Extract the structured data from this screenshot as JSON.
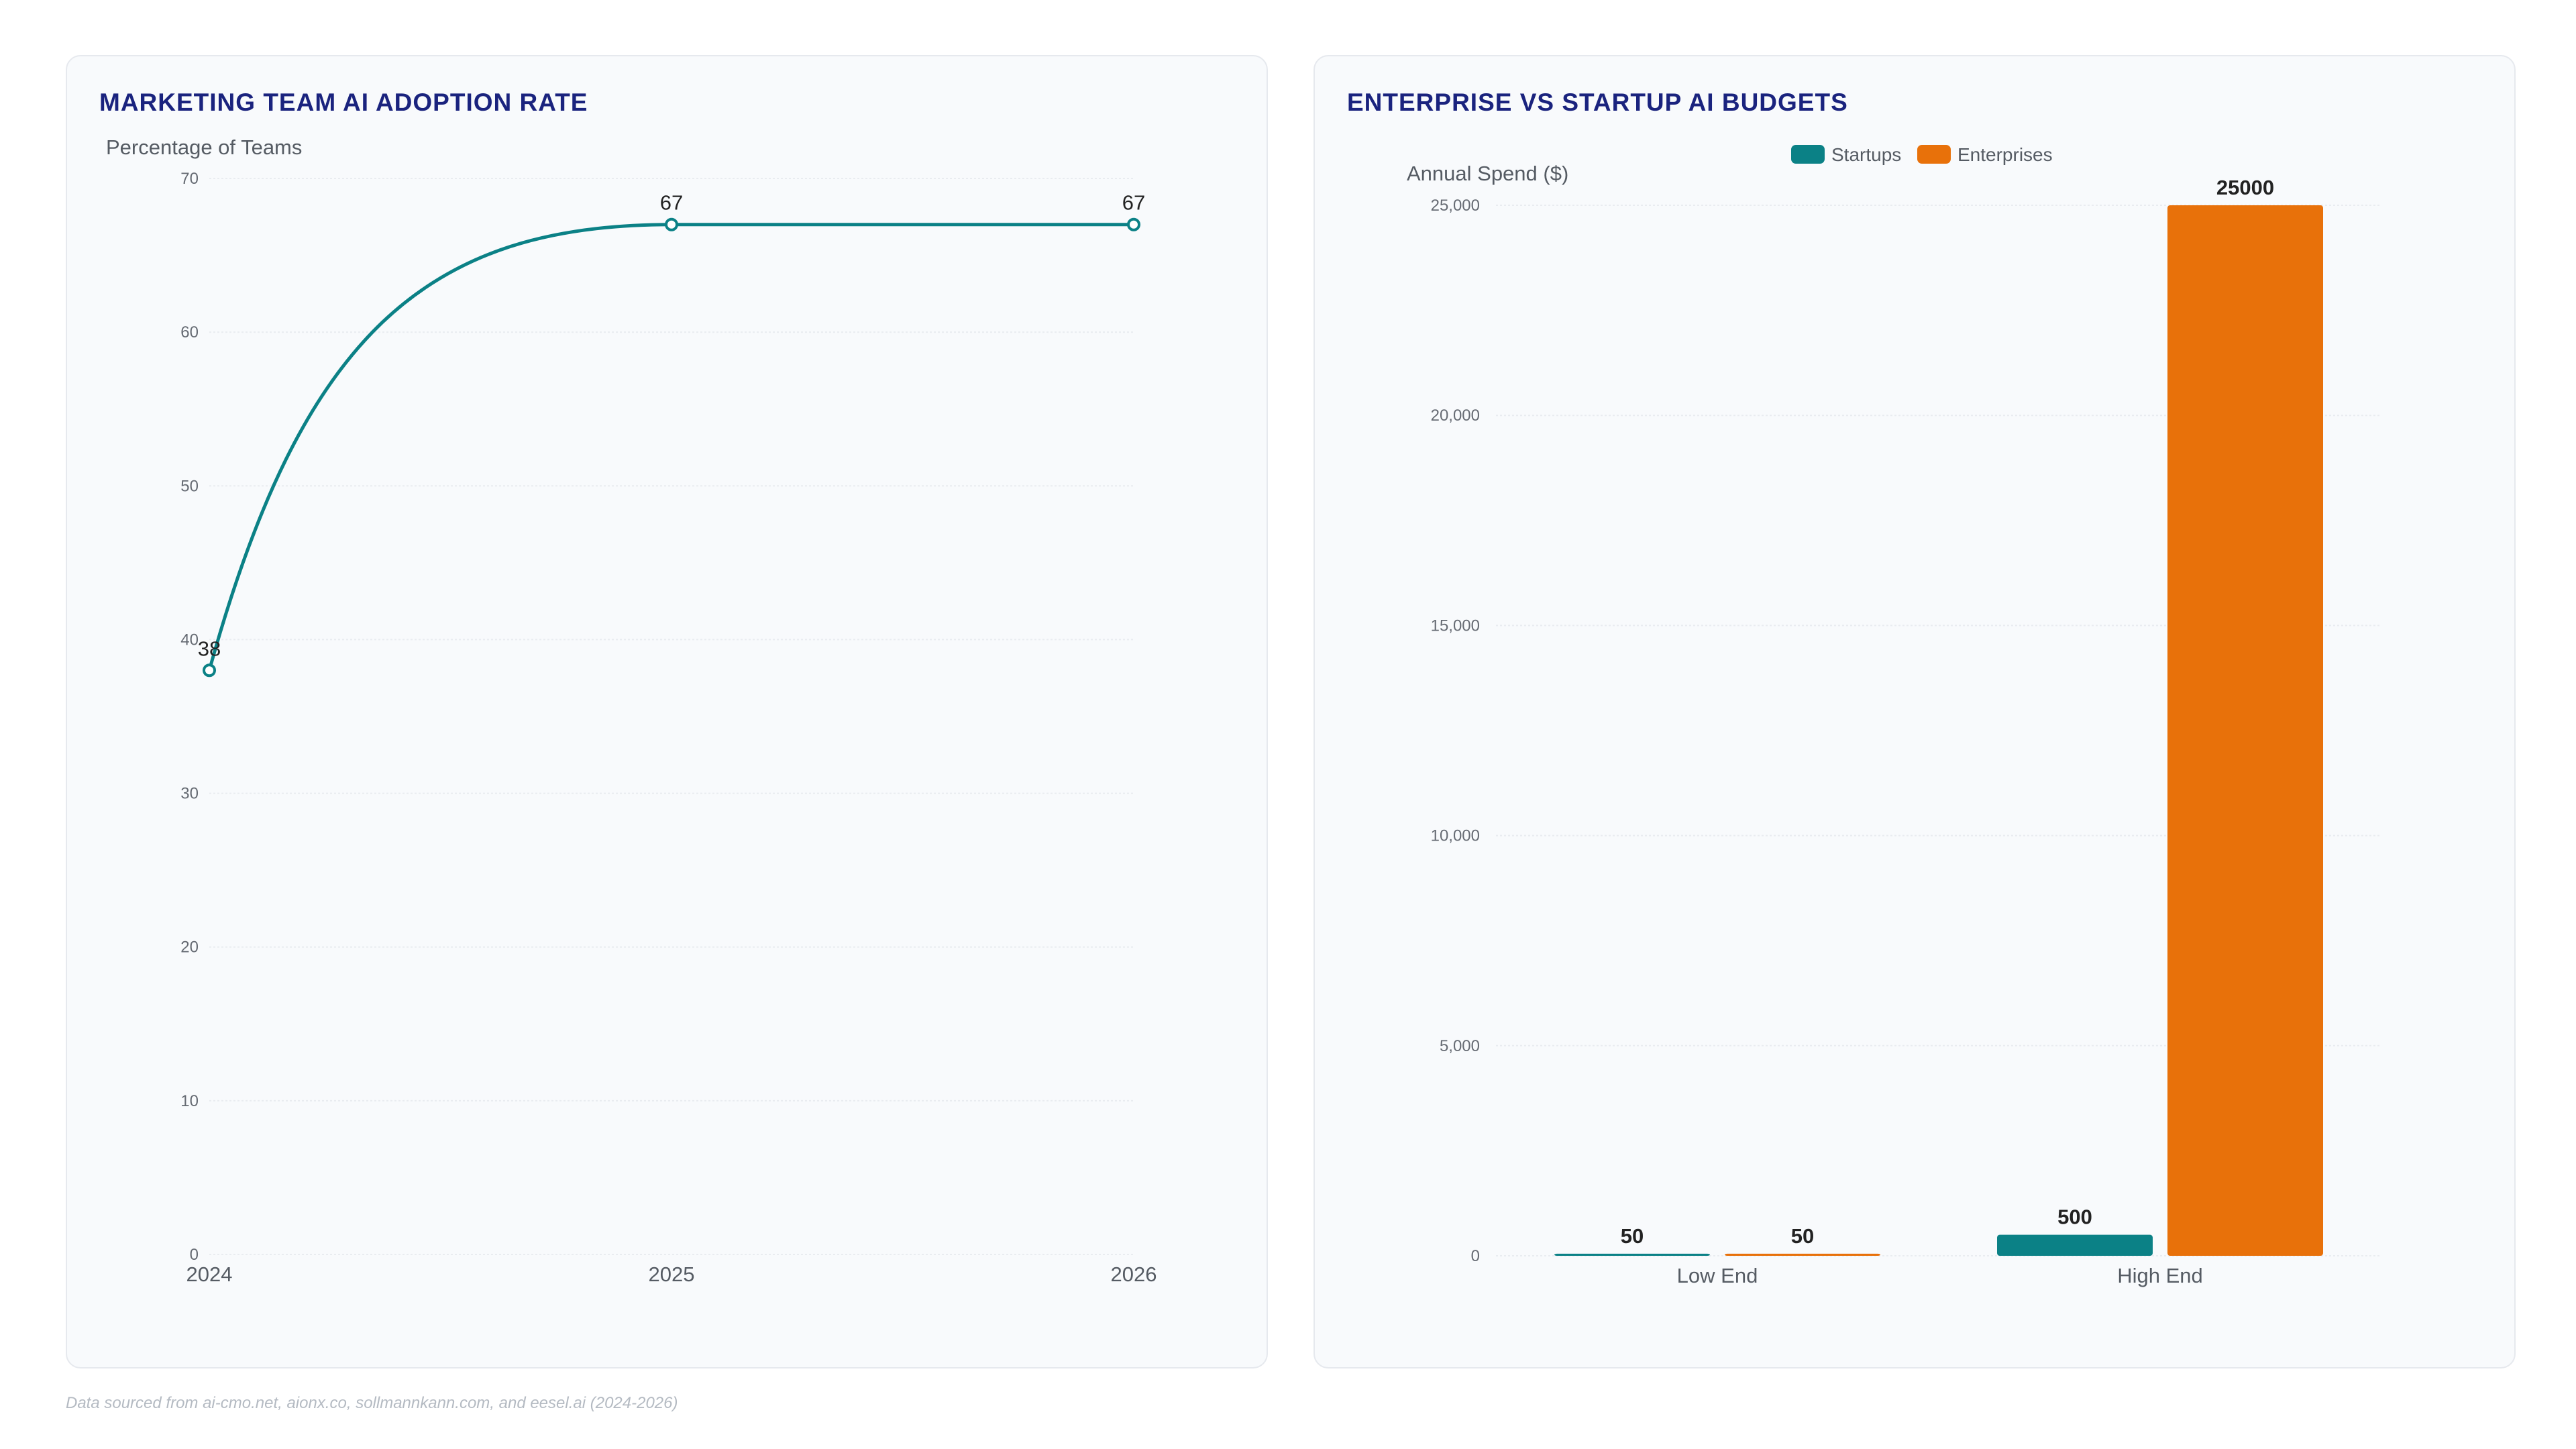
{
  "colors": {
    "title": "#1a237e",
    "startups": "#0b8186",
    "enterprises": "#e8710a",
    "line": "#0b8186"
  },
  "footer": "Data sourced from ai-cmo.net, aionx.co, sollmannkann.com, and eesel.ai (2024-2026)",
  "chart_data": [
    {
      "type": "line",
      "title": "MARKETING TEAM AI ADOPTION RATE",
      "ylabel": "Percentage of Teams",
      "x": [
        "2024",
        "2025",
        "2026"
      ],
      "values": [
        38,
        67,
        67
      ],
      "data_labels": [
        "38",
        "67",
        "67"
      ],
      "ylim": [
        0,
        70
      ],
      "y_ticks": [
        "0",
        "10",
        "20",
        "30",
        "40",
        "50",
        "60",
        "70"
      ],
      "grid": true,
      "smooth": true
    },
    {
      "type": "bar",
      "title": "ENTERPRISE VS STARTUP AI BUDGETS",
      "ylabel": "Annual Spend ($)",
      "categories": [
        "Low End",
        "High End"
      ],
      "series": [
        {
          "name": "Startups",
          "values": [
            50,
            500
          ],
          "labels": [
            "50",
            "500"
          ]
        },
        {
          "name": "Enterprises",
          "values": [
            50,
            25000
          ],
          "labels": [
            "50",
            "25000"
          ]
        }
      ],
      "ylim": [
        0,
        25000
      ],
      "y_ticks": [
        "0",
        "5,000",
        "10,000",
        "15,000",
        "20,000",
        "25,000"
      ],
      "legend": "top-center",
      "grid": true
    }
  ]
}
